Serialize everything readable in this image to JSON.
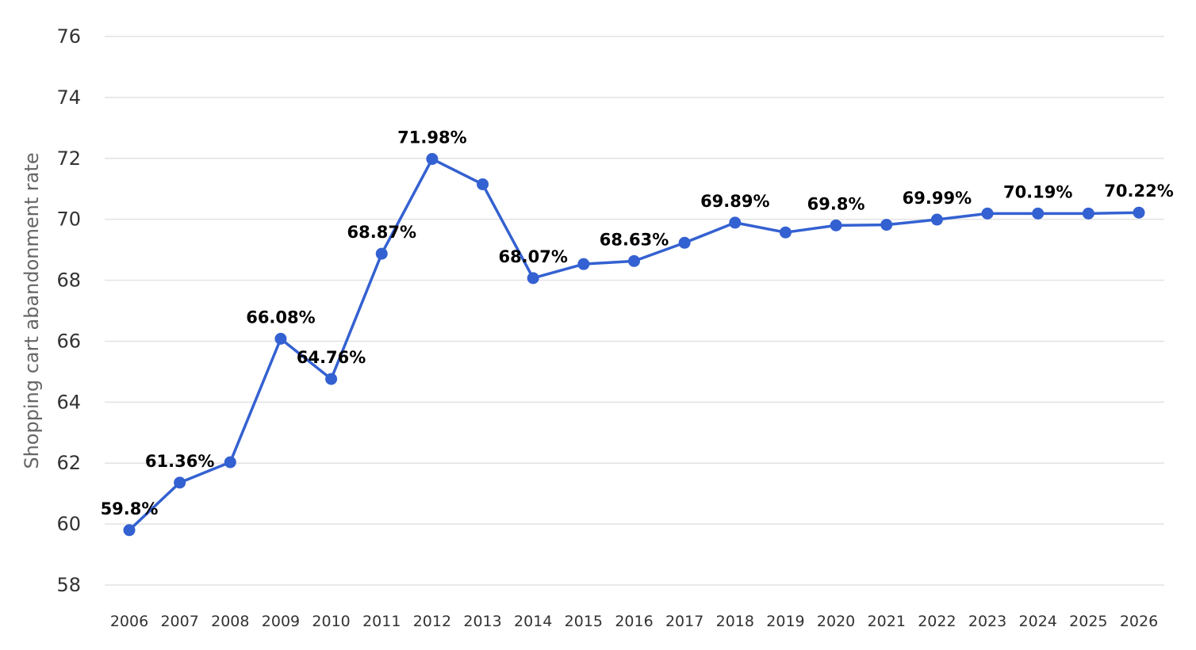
{
  "chart_data": {
    "type": "line",
    "title": "",
    "xlabel": "",
    "ylabel": "Shopping cart abandonment rate",
    "ylim": [
      58,
      76
    ],
    "yticks": [
      "58",
      "60",
      "62",
      "64",
      "66",
      "68",
      "70",
      "72",
      "74",
      "76"
    ],
    "grid": true,
    "legend": "none",
    "colors": {
      "line": "#3461d1",
      "grid": "#e2e2e2",
      "axis_text": "#333333",
      "ylabel": "#666666",
      "data_label": "#000000"
    },
    "categories": [
      "2006",
      "2007",
      "2008",
      "2009",
      "2010",
      "2011",
      "2012",
      "2013",
      "2014",
      "2015",
      "2016",
      "2017",
      "2018",
      "2019",
      "2020",
      "2021",
      "2022",
      "2023",
      "2024",
      "2025",
      "2026"
    ],
    "series": [
      {
        "values": [
          59.8,
          61.36,
          62.03,
          66.08,
          64.76,
          68.87,
          71.98,
          71.15,
          68.07,
          68.53,
          68.63,
          69.23,
          69.89,
          69.57,
          69.8,
          69.82,
          69.99,
          70.19,
          70.19,
          70.19,
          70.22
        ]
      }
    ],
    "data_labels": [
      {
        "index": 0,
        "text": "59.8%"
      },
      {
        "index": 1,
        "text": "61.36%"
      },
      {
        "index": 3,
        "text": "66.08%"
      },
      {
        "index": 4,
        "text": "64.76%"
      },
      {
        "index": 5,
        "text": "68.87%"
      },
      {
        "index": 6,
        "text": "71.98%"
      },
      {
        "index": 8,
        "text": "68.07%"
      },
      {
        "index": 10,
        "text": "68.63%"
      },
      {
        "index": 12,
        "text": "69.89%"
      },
      {
        "index": 14,
        "text": "69.8%"
      },
      {
        "index": 16,
        "text": "69.99%"
      },
      {
        "index": 18,
        "text": "70.19%"
      },
      {
        "index": 20,
        "text": "70.22%"
      }
    ]
  }
}
